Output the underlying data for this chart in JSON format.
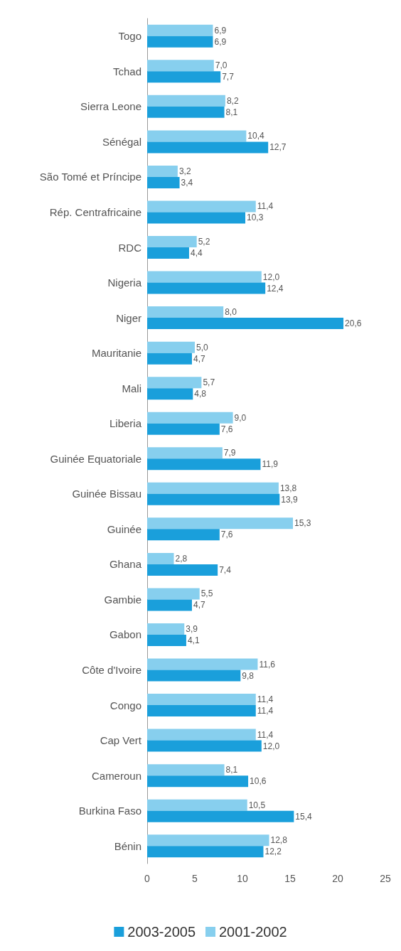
{
  "chart_data": {
    "type": "bar",
    "orientation": "horizontal",
    "categories": [
      "Togo",
      "Tchad",
      "Sierra Leone",
      "Sénégal",
      "São Tomé et Príncipe",
      "Rép. Centrafricaine",
      "RDC",
      "Nigeria",
      "Niger",
      "Mauritanie",
      "Mali",
      "Liberia",
      "Guinée Equatoriale",
      "Guinée Bissau",
      "Guinée",
      "Ghana",
      "Gambie",
      "Gabon",
      "Côte d'Ivoire",
      "Congo",
      "Cap Vert",
      "Cameroun",
      "Burkina Faso",
      "Bénin"
    ],
    "series": [
      {
        "name": "2001-2002",
        "color": "#87cfee",
        "values": [
          6.9,
          7.0,
          8.2,
          10.4,
          3.2,
          11.4,
          5.2,
          12.0,
          8.0,
          5.0,
          5.7,
          9.0,
          7.9,
          13.8,
          15.3,
          2.8,
          5.5,
          3.9,
          11.6,
          11.4,
          11.4,
          8.1,
          10.5,
          12.8
        ],
        "value_labels": [
          "6,9",
          "7,0",
          "8,2",
          "10,4",
          "3,2",
          "11,4",
          "5,2",
          "12,0",
          "8,0",
          "5,0",
          "5,7",
          "9,0",
          "7,9",
          "13,8",
          "15,3",
          "2,8",
          "5,5",
          "3,9",
          "11,6",
          "11,4",
          "11,4",
          "8,1",
          "10,5",
          "12,8"
        ]
      },
      {
        "name": "2003-2005",
        "color": "#1a9fdb",
        "values": [
          6.9,
          7.7,
          8.1,
          12.7,
          3.4,
          10.3,
          4.4,
          12.4,
          20.6,
          4.7,
          4.8,
          7.6,
          11.9,
          13.9,
          7.6,
          7.4,
          4.7,
          4.1,
          9.8,
          11.4,
          12.0,
          10.6,
          15.4,
          12.2
        ],
        "value_labels": [
          "6,9",
          "7,7",
          "8,1",
          "12,7",
          "3,4",
          "10,3",
          "4,4",
          "12,4",
          "20,6",
          "4,7",
          "4,8",
          "7,6",
          "11,9",
          "13,9",
          "7,6",
          "7,4",
          "4,7",
          "4,1",
          "9,8",
          "11,4",
          "12,0",
          "10,6",
          "15,4",
          "12,2"
        ]
      }
    ],
    "xlim": [
      0,
      25
    ],
    "xticks": [
      0,
      5,
      10,
      15,
      20,
      25
    ],
    "grid": false,
    "legend": "bottom"
  }
}
